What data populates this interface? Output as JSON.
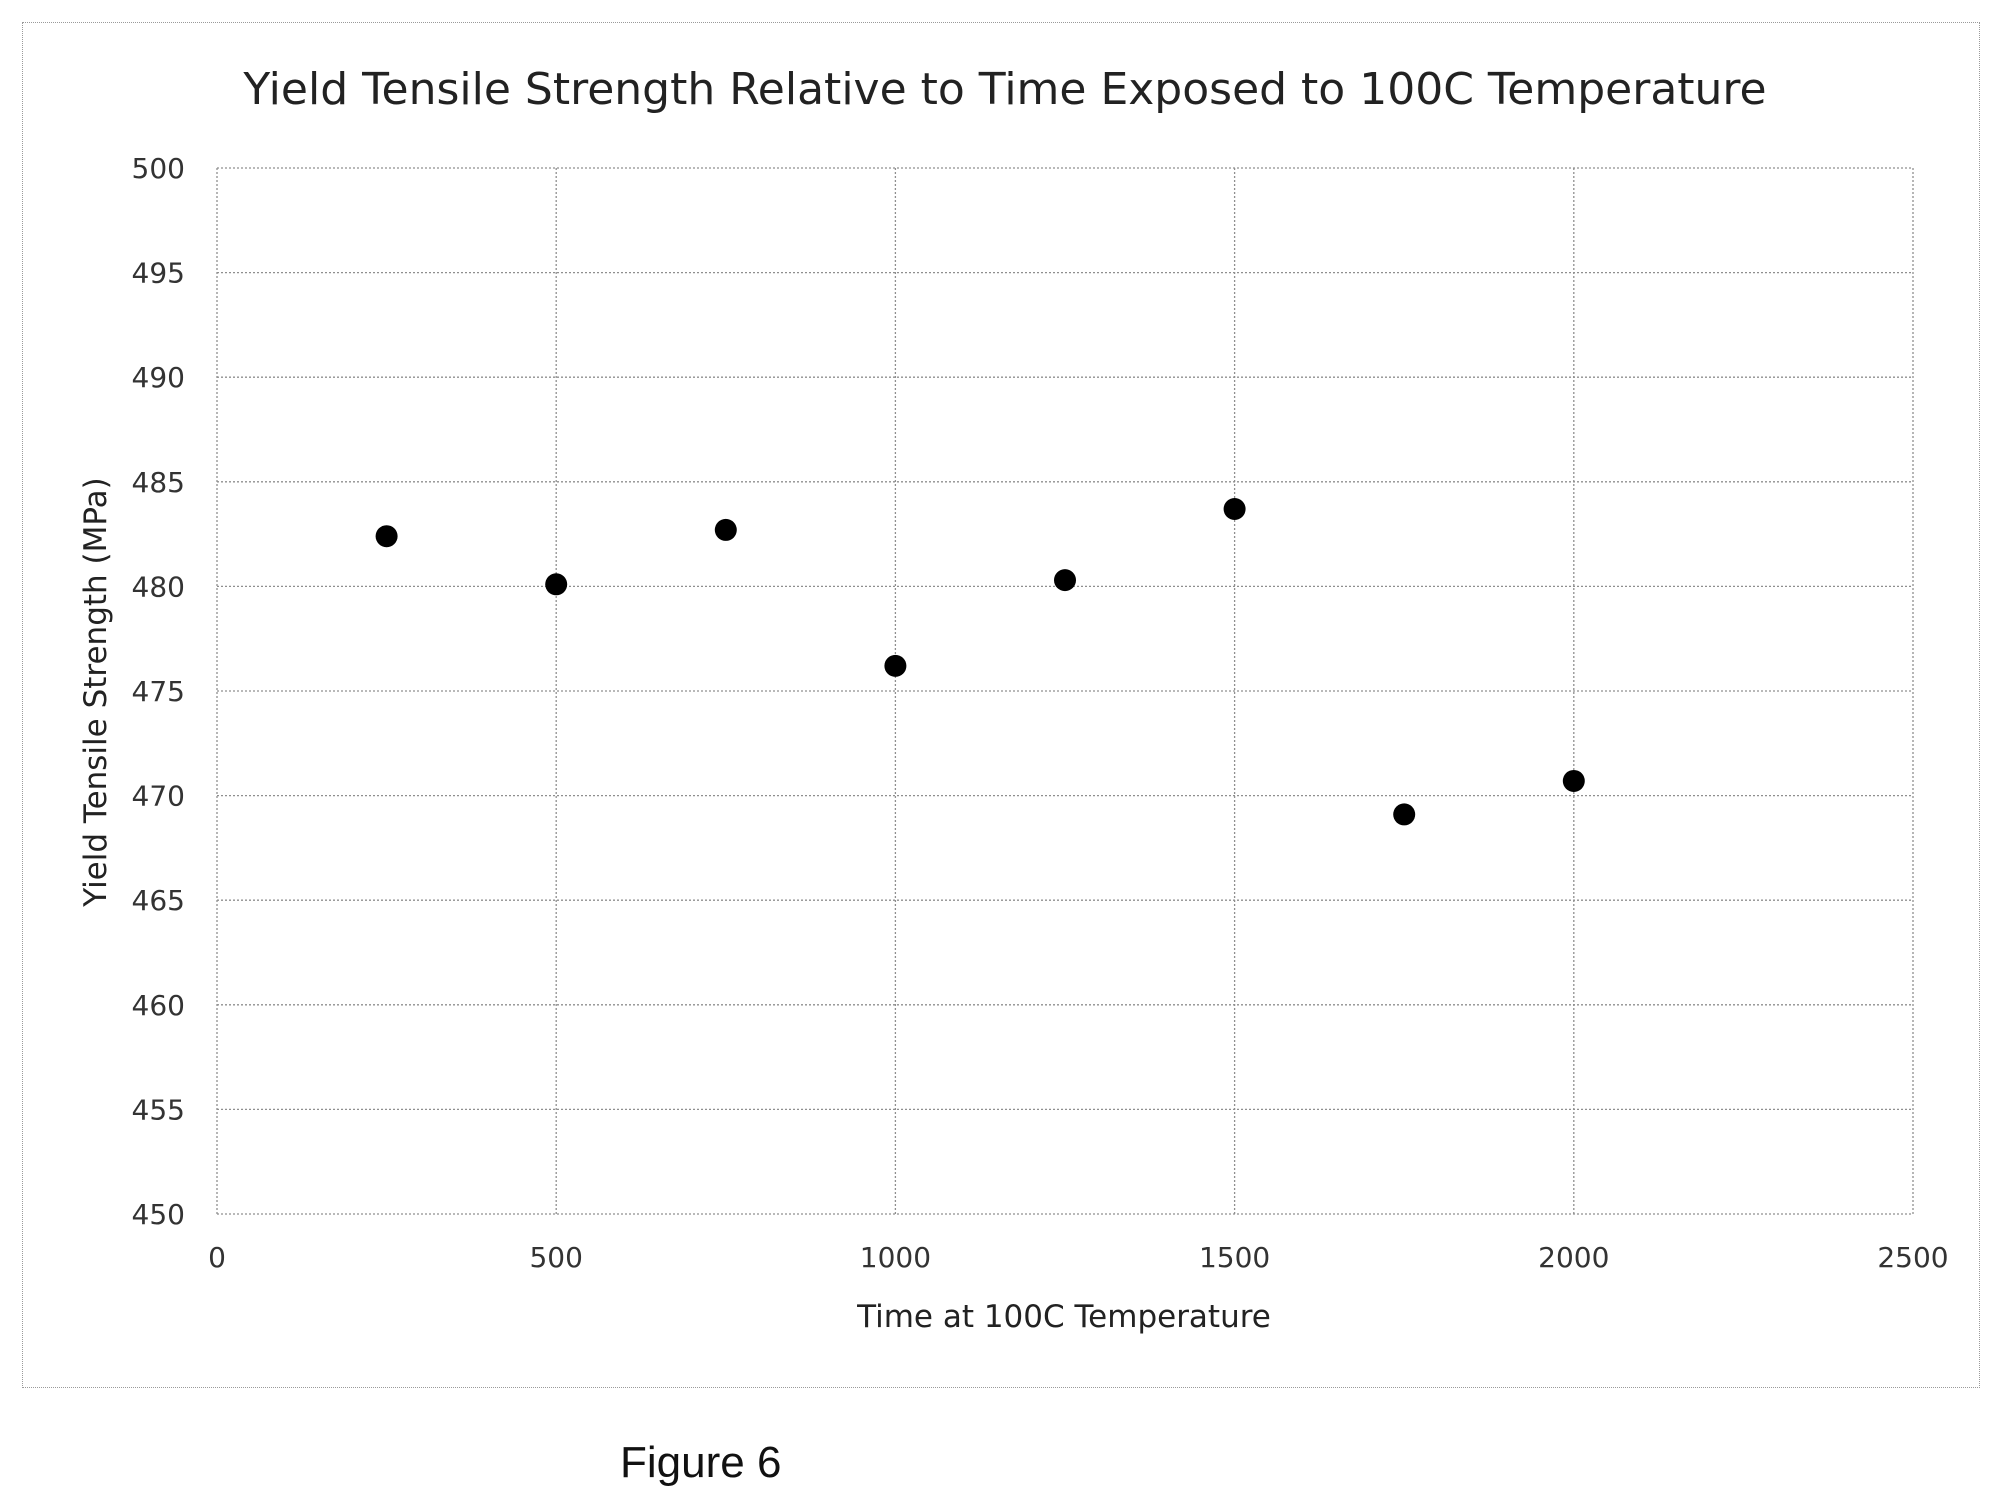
{
  "figure_caption": "Figure 6",
  "chart_data": {
    "type": "scatter",
    "title": "Yield Tensile Strength Relative to Time Exposed to 100C Temperature",
    "xlabel": "Time at 100C Temperature",
    "ylabel": "Yield Tensile Strength (MPa)",
    "xlim": [
      0,
      2500
    ],
    "ylim": [
      450,
      500
    ],
    "x_ticks": [
      0,
      500,
      1000,
      1500,
      2000,
      2500
    ],
    "y_ticks": [
      450,
      455,
      460,
      465,
      470,
      475,
      480,
      485,
      490,
      495,
      500
    ],
    "grid": true,
    "legend": "none",
    "marker_color": "#000000",
    "x": [
      250,
      500,
      750,
      1000,
      1250,
      1500,
      1750,
      2000
    ],
    "y": [
      482.4,
      480.1,
      482.7,
      476.2,
      480.3,
      483.7,
      469.1,
      470.7
    ]
  }
}
